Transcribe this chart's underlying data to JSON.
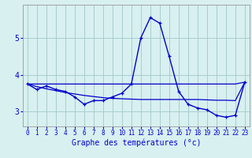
{
  "xlabel": "Graphe des températures (°c)",
  "background_color": "#d8f0f0",
  "grid_color": "#aacccc",
  "line_color": "#0000cc",
  "hours": [
    0,
    1,
    2,
    3,
    4,
    5,
    6,
    7,
    8,
    9,
    10,
    11,
    12,
    13,
    14,
    15,
    16,
    17,
    18,
    19,
    20,
    21,
    22,
    23
  ],
  "temp_main": [
    3.75,
    3.6,
    3.7,
    3.6,
    3.55,
    3.4,
    3.2,
    3.3,
    3.3,
    3.4,
    3.5,
    3.75,
    5.0,
    5.55,
    5.4,
    4.5,
    3.55,
    3.2,
    3.1,
    3.05,
    2.9,
    2.85,
    2.9,
    3.8
  ],
  "temp_line2": [
    3.75,
    3.75,
    3.75,
    3.75,
    3.75,
    3.75,
    3.75,
    3.75,
    3.75,
    3.75,
    3.75,
    3.75,
    3.75,
    3.75,
    3.75,
    3.75,
    3.75,
    3.75,
    3.75,
    3.75,
    3.75,
    3.75,
    3.75,
    3.8
  ],
  "temp_line3": [
    3.75,
    3.68,
    3.62,
    3.57,
    3.52,
    3.48,
    3.44,
    3.41,
    3.38,
    3.36,
    3.35,
    3.34,
    3.33,
    3.33,
    3.33,
    3.33,
    3.33,
    3.33,
    3.33,
    3.32,
    3.31,
    3.31,
    3.3,
    3.8
  ],
  "ylim": [
    2.6,
    5.9
  ],
  "yticks": [
    3,
    4,
    5
  ],
  "xlim": [
    -0.5,
    23.5
  ],
  "xtick_labels": [
    "0",
    "1",
    "2",
    "3",
    "4",
    "5",
    "6",
    "7",
    "8",
    "9",
    "10",
    "11",
    "12",
    "13",
    "14",
    "15",
    "16",
    "17",
    "18",
    "19",
    "20",
    "21",
    "22",
    "23"
  ]
}
